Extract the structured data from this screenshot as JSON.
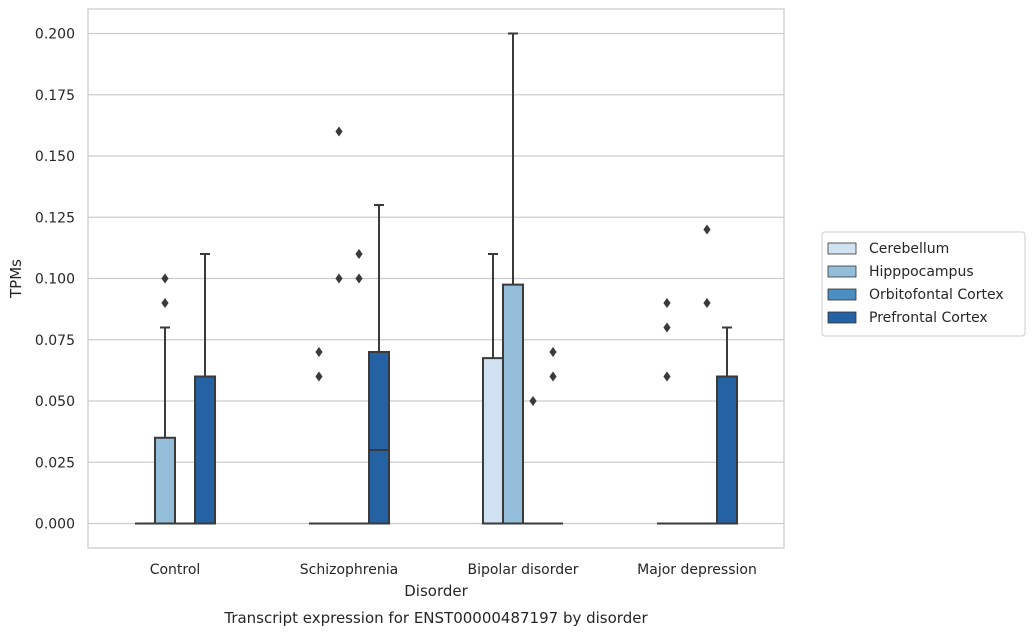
{
  "caption": "Transcript expression for ENST00000487197 by disorder",
  "chart_data": {
    "type": "box",
    "title": "",
    "xlabel": "Disorder",
    "ylabel": "TPMs",
    "ylim": [
      -0.01,
      0.21
    ],
    "yticks": [
      0.0,
      0.025,
      0.05,
      0.075,
      0.1,
      0.125,
      0.15,
      0.175,
      0.2
    ],
    "ytick_labels": [
      "0.000",
      "0.025",
      "0.050",
      "0.075",
      "0.100",
      "0.125",
      "0.150",
      "0.175",
      "0.200"
    ],
    "grid": "horizontal",
    "legend_position": "right",
    "categories": [
      "Control",
      "Schizophrenia",
      "Bipolar disorder",
      "Major depression"
    ],
    "series": [
      {
        "name": "Cerebellum",
        "color": "#d0e2f1",
        "boxes": [
          {
            "q1": 0.0,
            "median": 0.0,
            "q3": 0.0,
            "whisker_low": 0.0,
            "whisker_high": 0.0,
            "outliers": []
          },
          {
            "q1": 0.0,
            "median": 0.0,
            "q3": 0.0,
            "whisker_low": 0.0,
            "whisker_high": 0.0,
            "outliers": [
              0.06,
              0.07
            ]
          },
          {
            "q1": 0.0,
            "median": 0.0,
            "q3": 0.0675,
            "whisker_low": 0.0,
            "whisker_high": 0.11,
            "outliers": []
          },
          {
            "q1": 0.0,
            "median": 0.0,
            "q3": 0.0,
            "whisker_low": 0.0,
            "whisker_high": 0.0,
            "outliers": [
              0.06,
              0.08,
              0.09
            ]
          }
        ]
      },
      {
        "name": "Hipppocampus",
        "color": "#94bdd9",
        "boxes": [
          {
            "q1": 0.0,
            "median": 0.0,
            "q3": 0.035,
            "whisker_low": 0.0,
            "whisker_high": 0.08,
            "outliers": [
              0.09,
              0.1
            ]
          },
          {
            "q1": 0.0,
            "median": 0.0,
            "q3": 0.0,
            "whisker_low": 0.0,
            "whisker_high": 0.0,
            "outliers": [
              0.1,
              0.16
            ]
          },
          {
            "q1": 0.0,
            "median": 0.0,
            "q3": 0.0975,
            "whisker_low": 0.0,
            "whisker_high": 0.2,
            "outliers": []
          },
          {
            "q1": 0.0,
            "median": 0.0,
            "q3": 0.0,
            "whisker_low": 0.0,
            "whisker_high": 0.0,
            "outliers": []
          }
        ]
      },
      {
        "name": "Orbitofontal Cortex",
        "color": "#4a8ec2",
        "boxes": [
          {
            "q1": 0.0,
            "median": 0.0,
            "q3": 0.0,
            "whisker_low": 0.0,
            "whisker_high": 0.0,
            "outliers": []
          },
          {
            "q1": 0.0,
            "median": 0.0,
            "q3": 0.0,
            "whisker_low": 0.0,
            "whisker_high": 0.0,
            "outliers": [
              0.1,
              0.11
            ]
          },
          {
            "q1": 0.0,
            "median": 0.0,
            "q3": 0.0,
            "whisker_low": 0.0,
            "whisker_high": 0.0,
            "outliers": [
              0.05
            ]
          },
          {
            "q1": 0.0,
            "median": 0.0,
            "q3": 0.0,
            "whisker_low": 0.0,
            "whisker_high": 0.0,
            "outliers": [
              0.09,
              0.12
            ]
          }
        ]
      },
      {
        "name": "Prefrontal Cortex",
        "color": "#2462a4",
        "boxes": [
          {
            "q1": 0.0,
            "median": 0.0,
            "q3": 0.06,
            "whisker_low": 0.0,
            "whisker_high": 0.11,
            "outliers": []
          },
          {
            "q1": 0.0,
            "median": 0.03,
            "q3": 0.07,
            "whisker_low": 0.0,
            "whisker_high": 0.13,
            "outliers": []
          },
          {
            "q1": 0.0,
            "median": 0.0,
            "q3": 0.0,
            "whisker_low": 0.0,
            "whisker_high": 0.0,
            "outliers": [
              0.06,
              0.07
            ]
          },
          {
            "q1": 0.0,
            "median": 0.0,
            "q3": 0.06,
            "whisker_low": 0.0,
            "whisker_high": 0.08,
            "outliers": []
          }
        ]
      }
    ]
  }
}
